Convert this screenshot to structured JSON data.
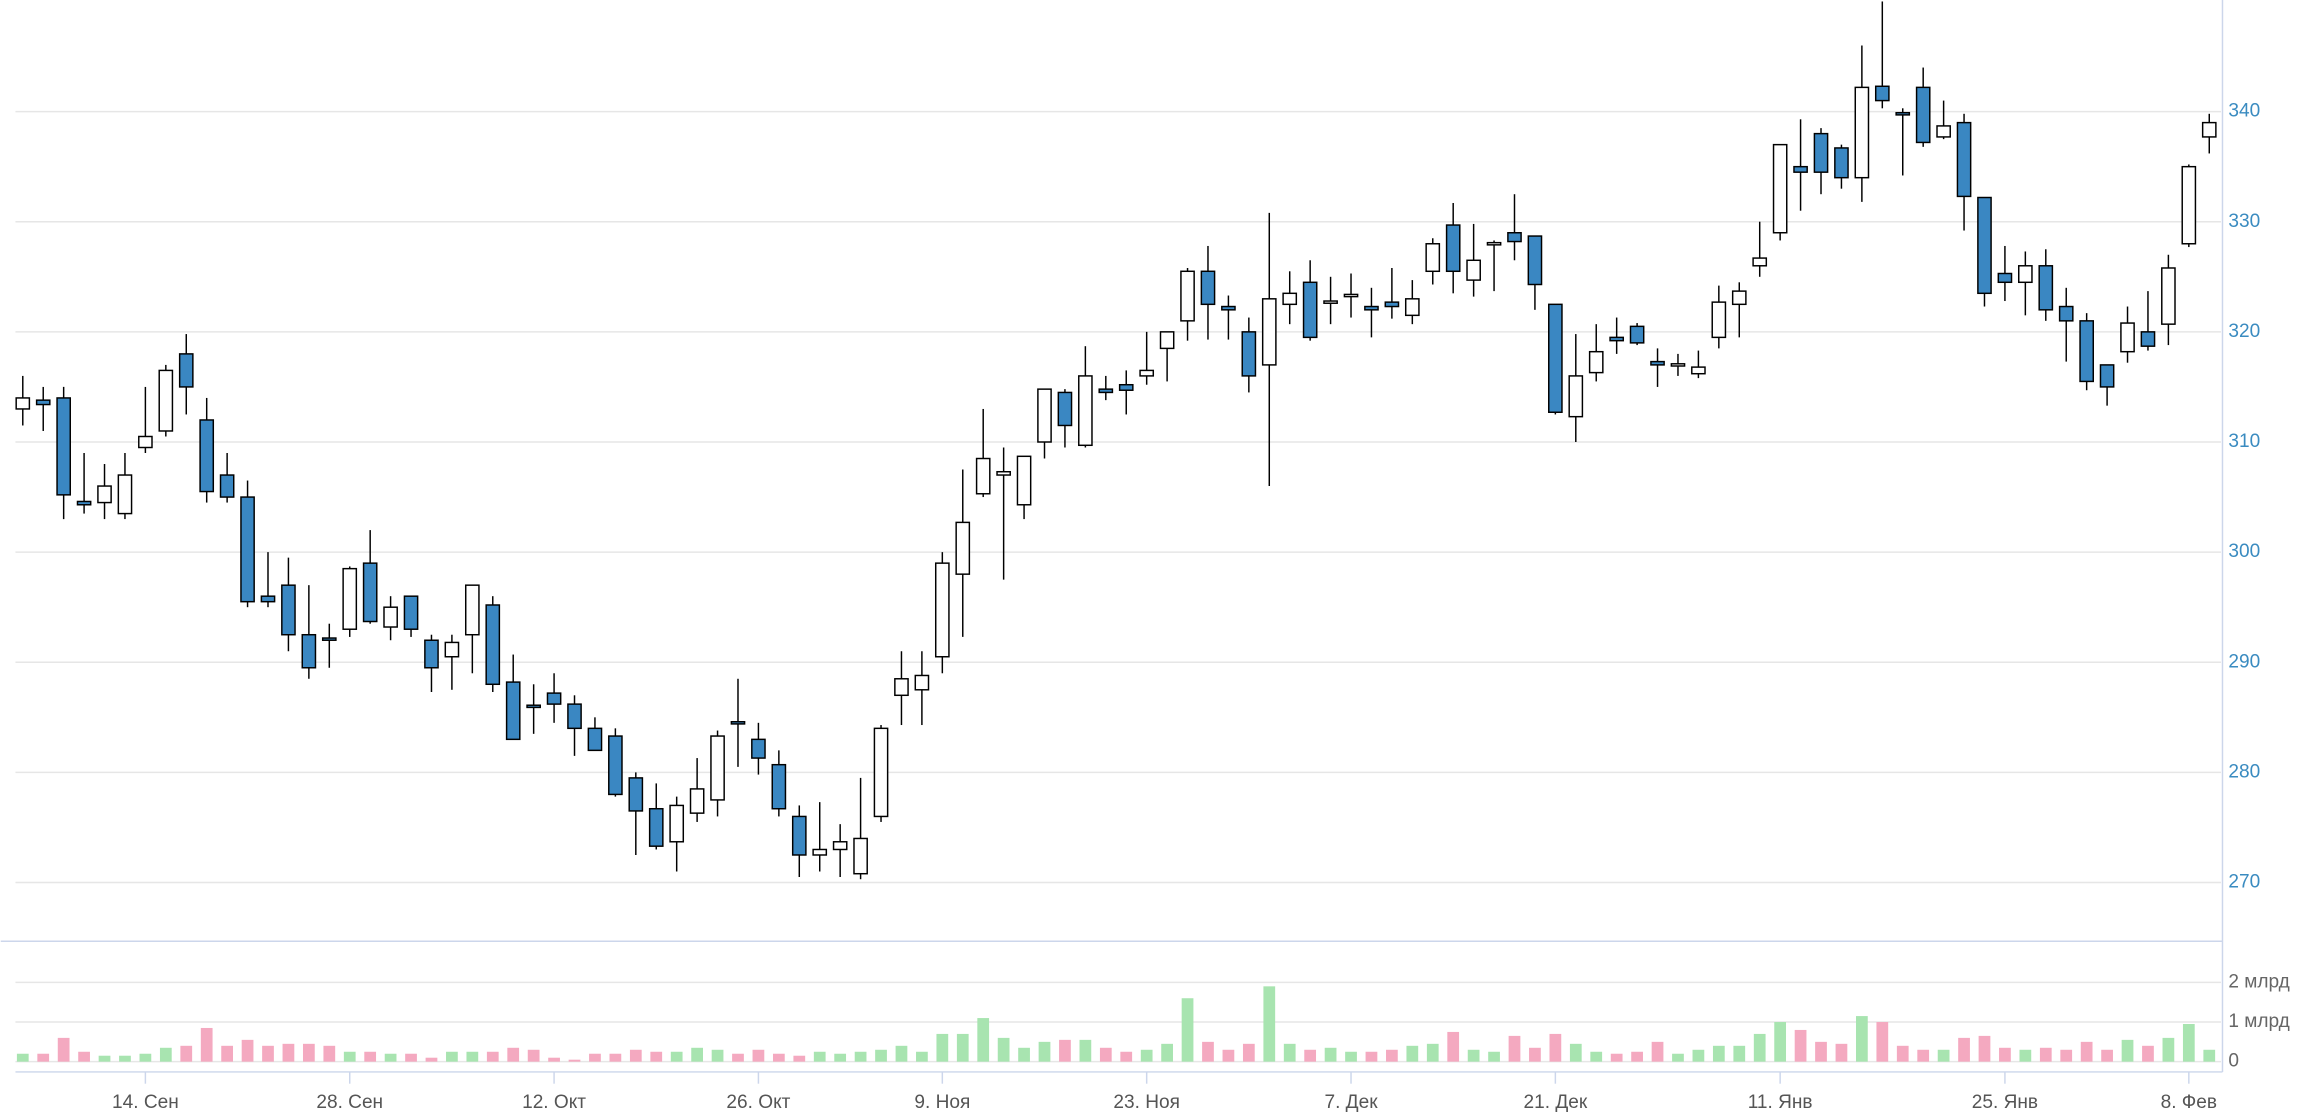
{
  "chart_data": {
    "type": "candlestick",
    "categories": [
      null,
      null,
      null,
      null,
      null,
      null,
      "14. Сен",
      null,
      null,
      null,
      null,
      null,
      null,
      null,
      null,
      null,
      "28. Сен",
      null,
      null,
      null,
      null,
      null,
      null,
      null,
      null,
      null,
      "12. Окт",
      null,
      null,
      null,
      null,
      null,
      null,
      null,
      null,
      null,
      "26. Окт",
      null,
      null,
      null,
      null,
      null,
      null,
      null,
      null,
      "9. Ноя",
      null,
      null,
      null,
      null,
      null,
      null,
      null,
      null,
      null,
      "23. Ноя",
      null,
      null,
      null,
      null,
      null,
      null,
      null,
      null,
      null,
      "7. Дек",
      null,
      null,
      null,
      null,
      null,
      null,
      null,
      null,
      null,
      "21. Дек",
      null,
      null,
      null,
      null,
      null,
      null,
      null,
      null,
      null,
      null,
      "11. Янв",
      null,
      null,
      null,
      null,
      null,
      null,
      null,
      null,
      null,
      null,
      "25. Янв",
      null,
      null,
      null,
      null,
      null,
      null,
      null,
      null,
      "8. Фев",
      null
    ],
    "open": [
      313,
      313.8,
      314,
      304.6,
      304.5,
      303.5,
      309.5,
      311,
      318,
      312,
      307,
      305,
      296,
      297,
      292.5,
      292.2,
      293,
      299,
      293.2,
      296,
      292,
      290.5,
      292.5,
      295.2,
      288.2,
      286.1,
      287.2,
      286.2,
      284,
      283.3,
      279.5,
      276.7,
      273.7,
      276.3,
      277.5,
      284.6,
      283,
      280.7,
      276,
      272.5,
      273,
      270.8,
      276,
      287,
      287.5,
      290.5,
      298,
      305.3,
      307,
      304.3,
      310,
      314.5,
      309.7,
      314.8,
      315.2,
      316,
      318.5,
      321,
      325.5,
      322.3,
      320,
      317,
      322.5,
      324.5,
      322.6,
      323.2,
      322.3,
      322.7,
      321.5,
      325.5,
      329.7,
      324.7,
      327.9,
      329,
      328.7,
      322.5,
      312.3,
      316.3,
      319.5,
      320.5,
      317.3,
      316.9,
      316.2,
      319.5,
      322.5,
      326,
      329,
      335,
      338,
      336.7,
      334,
      342.3,
      339.9,
      342.2,
      337.7,
      339,
      332.2,
      325.3,
      324.5,
      326,
      322.3,
      321,
      317,
      318.2,
      320,
      320.7,
      328,
      337.7
    ],
    "high": [
      316,
      315,
      315,
      309,
      308,
      309,
      315,
      317,
      319.8,
      314,
      309,
      306.5,
      300,
      299.5,
      297,
      293.5,
      298.7,
      302,
      296,
      296,
      292.5,
      292.5,
      297,
      296,
      290.7,
      288,
      289,
      287,
      285,
      284,
      280,
      279,
      277.8,
      281.3,
      283.8,
      288.5,
      284.5,
      282,
      277,
      277.3,
      275.3,
      279.5,
      284.3,
      291,
      291,
      300,
      307.5,
      313,
      309.5,
      308.7,
      314.8,
      314.8,
      318.7,
      316,
      316.5,
      320,
      320,
      325.8,
      327.8,
      323.3,
      321.3,
      330.8,
      325.5,
      326.5,
      325,
      325.3,
      324,
      325.8,
      324.7,
      328.5,
      331.7,
      329.8,
      328.3,
      332.5,
      328.7,
      322.5,
      319.8,
      320.7,
      321.3,
      320.8,
      318.5,
      318,
      318.3,
      324.2,
      324.5,
      330,
      337,
      339.3,
      338.5,
      337,
      346,
      350,
      340.3,
      344,
      341,
      339.8,
      332.2,
      327.8,
      327.3,
      327.5,
      324,
      321.7,
      317,
      322.3,
      323.7,
      327,
      335.2,
      339.8
    ],
    "low": [
      311.5,
      311,
      303,
      303.5,
      303,
      303,
      309,
      310.5,
      312.5,
      304.5,
      304.5,
      295,
      295,
      291,
      288.5,
      289.5,
      292.3,
      293.5,
      292,
      292.3,
      287.3,
      287.5,
      289,
      287.3,
      283,
      283.5,
      284.5,
      281.5,
      282,
      277.8,
      272.5,
      273,
      271,
      275.5,
      276,
      280.5,
      279.8,
      276,
      270.5,
      271,
      270.5,
      270.3,
      275.5,
      284.3,
      284.3,
      289,
      292.3,
      305,
      297.5,
      303,
      308.5,
      309.5,
      309.5,
      313.8,
      312.5,
      315.2,
      315.5,
      319.2,
      319.3,
      319.3,
      314.5,
      306,
      320.7,
      319.2,
      320.7,
      321.3,
      319.5,
      321.2,
      320.7,
      324.3,
      323.5,
      323.2,
      323.7,
      326.5,
      322,
      312.5,
      310,
      315.5,
      318,
      318.8,
      315,
      316,
      315.8,
      318.5,
      319.5,
      325,
      328.3,
      331,
      332.5,
      333,
      331.8,
      340.3,
      334.2,
      336.8,
      337.5,
      329.2,
      322.3,
      322.8,
      321.5,
      321,
      317.3,
      314.7,
      313.3,
      317.2,
      318.3,
      318.8,
      327.7,
      336.2
    ],
    "close": [
      314,
      313.4,
      305.2,
      304.3,
      306,
      307,
      310.5,
      316.5,
      315,
      305.5,
      305,
      295.5,
      295.5,
      292.5,
      289.5,
      292,
      298.5,
      293.7,
      295,
      293,
      289.5,
      291.8,
      297,
      288,
      283,
      285.9,
      286.2,
      284,
      282,
      278,
      276.5,
      273.3,
      277,
      278.5,
      283.3,
      284.4,
      281.3,
      276.7,
      272.5,
      273,
      273.7,
      274,
      284,
      288.5,
      288.8,
      299,
      302.7,
      308.5,
      307.3,
      308.7,
      314.8,
      311.5,
      316,
      314.5,
      314.7,
      316.5,
      320,
      325.5,
      322.5,
      322,
      316,
      323,
      323.5,
      319.5,
      322.8,
      323.4,
      322,
      322.3,
      323,
      328,
      325.5,
      326.5,
      328.1,
      328.2,
      324.3,
      312.7,
      316,
      318.2,
      319.2,
      319,
      317,
      317.1,
      316.8,
      322.7,
      323.7,
      326.7,
      337,
      334.5,
      334.5,
      334,
      342.2,
      341,
      339.7,
      337.2,
      338.7,
      332.3,
      323.5,
      324.5,
      326,
      322,
      321,
      315.5,
      315,
      320.8,
      318.7,
      325.8,
      335,
      339
    ],
    "volume": [
      0.2,
      0.2,
      0.6,
      0.25,
      0.15,
      0.15,
      0.2,
      0.35,
      0.4,
      0.85,
      0.4,
      0.55,
      0.4,
      0.45,
      0.45,
      0.4,
      0.25,
      0.25,
      0.2,
      0.2,
      0.1,
      0.25,
      0.25,
      0.25,
      0.35,
      0.3,
      0.1,
      0.05,
      0.2,
      0.2,
      0.3,
      0.25,
      0.25,
      0.35,
      0.3,
      0.2,
      0.3,
      0.2,
      0.15,
      0.25,
      0.2,
      0.25,
      0.3,
      0.4,
      0.25,
      0.7,
      0.7,
      1.1,
      0.6,
      0.35,
      0.5,
      0.55,
      0.55,
      0.35,
      0.25,
      0.3,
      0.45,
      1.6,
      0.5,
      0.3,
      0.45,
      1.9,
      0.45,
      0.3,
      0.35,
      0.25,
      0.25,
      0.3,
      0.4,
      0.45,
      0.75,
      0.3,
      0.25,
      0.65,
      0.35,
      0.7,
      0.45,
      0.25,
      0.2,
      0.25,
      0.5,
      0.2,
      0.3,
      0.4,
      0.4,
      0.7,
      1.0,
      0.8,
      0.5,
      0.45,
      1.15,
      1.0,
      0.4,
      0.3,
      0.3,
      0.6,
      0.65,
      0.35,
      0.3,
      0.35,
      0.3,
      0.5,
      0.3,
      0.55,
      0.4,
      0.6,
      0.95,
      0.3
    ],
    "ylim": [
      268,
      350
    ],
    "yticks": [
      270,
      280,
      290,
      300,
      310,
      320,
      330,
      340
    ],
    "volume_ylim": [
      0,
      3
    ],
    "volume_yticks": [
      0,
      {
        "value": 1,
        "label": "1 млрд"
      },
      {
        "value": 2,
        "label": "2 млрд"
      }
    ],
    "up_color": "#ffffff",
    "down_color": "#3a87c2",
    "volume_up_color": "#a8e4b0",
    "volume_down_color": "#f4a9c0",
    "grid": true
  }
}
